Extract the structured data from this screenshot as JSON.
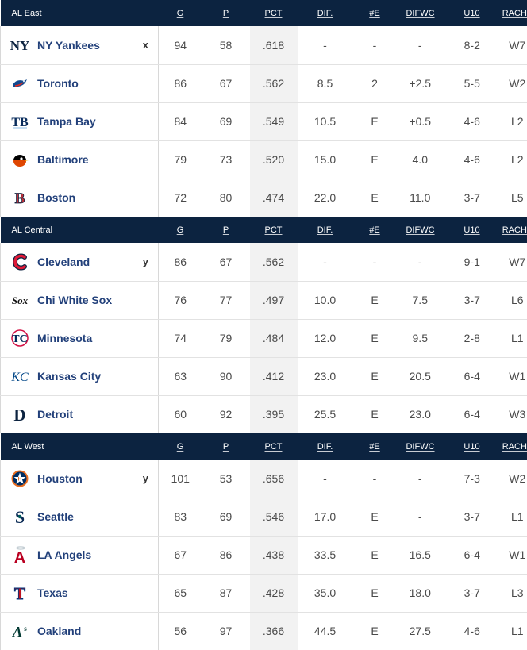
{
  "headers": {
    "g": "G",
    "p": "P",
    "pct": "PCT",
    "dif": "DIF.",
    "e": "#E",
    "difwc": "DIFWC",
    "u10": "U10",
    "racha": "RACHA"
  },
  "divisions": [
    {
      "name": "AL East",
      "teams": [
        {
          "name": "NY Yankees",
          "logo_icon": "yankees-logo-icon",
          "clinch": "x",
          "g": "94",
          "p": "58",
          "pct": ".618",
          "dif": "-",
          "e": "-",
          "difwc": "-",
          "u10": "8-2",
          "racha": "W7"
        },
        {
          "name": "Toronto",
          "logo_icon": "blue-jays-logo-icon",
          "clinch": "",
          "g": "86",
          "p": "67",
          "pct": ".562",
          "dif": "8.5",
          "e": "2",
          "difwc": "+2.5",
          "u10": "5-5",
          "racha": "W2"
        },
        {
          "name": "Tampa Bay",
          "logo_icon": "rays-logo-icon",
          "clinch": "",
          "g": "84",
          "p": "69",
          "pct": ".549",
          "dif": "10.5",
          "e": "E",
          "difwc": "+0.5",
          "u10": "4-6",
          "racha": "L2"
        },
        {
          "name": "Baltimore",
          "logo_icon": "orioles-logo-icon",
          "clinch": "",
          "g": "79",
          "p": "73",
          "pct": ".520",
          "dif": "15.0",
          "e": "E",
          "difwc": "4.0",
          "u10": "4-6",
          "racha": "L2"
        },
        {
          "name": "Boston",
          "logo_icon": "red-sox-logo-icon",
          "clinch": "",
          "g": "72",
          "p": "80",
          "pct": ".474",
          "dif": "22.0",
          "e": "E",
          "difwc": "11.0",
          "u10": "3-7",
          "racha": "L5"
        }
      ]
    },
    {
      "name": "AL Central",
      "teams": [
        {
          "name": "Cleveland",
          "logo_icon": "guardians-logo-icon",
          "clinch": "y",
          "g": "86",
          "p": "67",
          "pct": ".562",
          "dif": "-",
          "e": "-",
          "difwc": "-",
          "u10": "9-1",
          "racha": "W7"
        },
        {
          "name": "Chi White Sox",
          "logo_icon": "white-sox-logo-icon",
          "clinch": "",
          "g": "76",
          "p": "77",
          "pct": ".497",
          "dif": "10.0",
          "e": "E",
          "difwc": "7.5",
          "u10": "3-7",
          "racha": "L6"
        },
        {
          "name": "Minnesota",
          "logo_icon": "twins-logo-icon",
          "clinch": "",
          "g": "74",
          "p": "79",
          "pct": ".484",
          "dif": "12.0",
          "e": "E",
          "difwc": "9.5",
          "u10": "2-8",
          "racha": "L1"
        },
        {
          "name": "Kansas City",
          "logo_icon": "royals-logo-icon",
          "clinch": "",
          "g": "63",
          "p": "90",
          "pct": ".412",
          "dif": "23.0",
          "e": "E",
          "difwc": "20.5",
          "u10": "6-4",
          "racha": "W1"
        },
        {
          "name": "Detroit",
          "logo_icon": "tigers-logo-icon",
          "clinch": "",
          "g": "60",
          "p": "92",
          "pct": ".395",
          "dif": "25.5",
          "e": "E",
          "difwc": "23.0",
          "u10": "6-4",
          "racha": "W3"
        }
      ]
    },
    {
      "name": "AL West",
      "teams": [
        {
          "name": "Houston",
          "logo_icon": "astros-logo-icon",
          "clinch": "y",
          "g": "101",
          "p": "53",
          "pct": ".656",
          "dif": "-",
          "e": "-",
          "difwc": "-",
          "u10": "7-3",
          "racha": "W2"
        },
        {
          "name": "Seattle",
          "logo_icon": "mariners-logo-icon",
          "clinch": "",
          "g": "83",
          "p": "69",
          "pct": ".546",
          "dif": "17.0",
          "e": "E",
          "difwc": "-",
          "u10": "3-7",
          "racha": "L1"
        },
        {
          "name": "LA Angels",
          "logo_icon": "angels-logo-icon",
          "clinch": "",
          "g": "67",
          "p": "86",
          "pct": ".438",
          "dif": "33.5",
          "e": "E",
          "difwc": "16.5",
          "u10": "6-4",
          "racha": "W1"
        },
        {
          "name": "Texas",
          "logo_icon": "rangers-logo-icon",
          "clinch": "",
          "g": "65",
          "p": "87",
          "pct": ".428",
          "dif": "35.0",
          "e": "E",
          "difwc": "18.0",
          "u10": "3-7",
          "racha": "L3"
        },
        {
          "name": "Oakland",
          "logo_icon": "athletics-logo-icon",
          "clinch": "",
          "g": "56",
          "p": "97",
          "pct": ".366",
          "dif": "44.5",
          "e": "E",
          "difwc": "27.5",
          "u10": "4-6",
          "racha": "L1"
        }
      ]
    }
  ],
  "colors": {
    "header_bg": "#0c2340",
    "team_link": "#22407a",
    "pct_column_bg": "#f2f2f2",
    "row_border": "#e2e2e2"
  }
}
